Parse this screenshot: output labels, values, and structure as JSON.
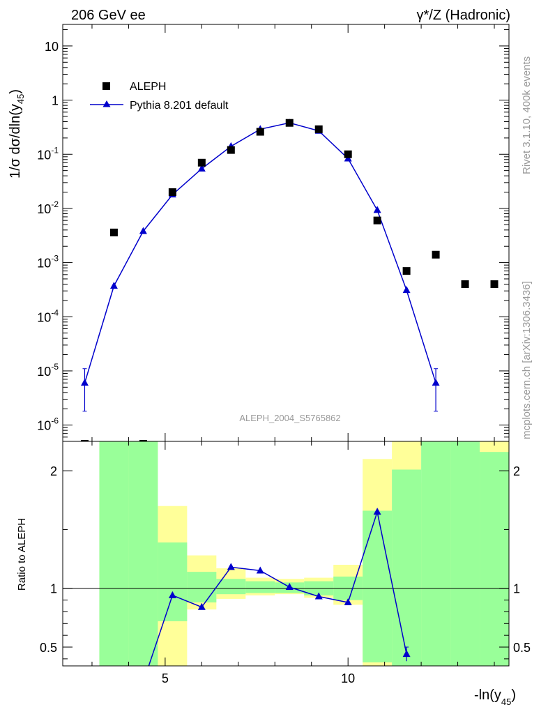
{
  "header": {
    "left": "206 GeV ee",
    "right": "γ*/Z (Hadronic)"
  },
  "side_text": {
    "rivet": "Rivet 3.1.10,  400k events",
    "mcplots": "mcplots.cern.ch [arXiv:1306.3436]"
  },
  "analysis_label": "ALEPH_2004_S5765862",
  "legend": {
    "data": "ALEPH",
    "mc": "Pythia 8.201 default"
  },
  "colors": {
    "mc": "#0000cc",
    "data": "#000000",
    "band_stat": "#99ff99",
    "band_total": "#ffff99"
  },
  "chart_data": [
    {
      "type": "scatter",
      "panel": "main",
      "ylabel": "1/σ dσ/dln(y45)",
      "ylabel_parts": {
        "main": "1/σ  dσ/dln(y",
        "sub": "45",
        "close": ")"
      },
      "yscale": "log",
      "ylim": [
        5e-07,
        25
      ],
      "xlim": [
        2.2,
        14.4
      ],
      "ytick_labels": [
        {
          "base": "10",
          "exp": "-6",
          "value": 1e-06
        },
        {
          "base": "10",
          "exp": "-5",
          "value": 1e-05
        },
        {
          "base": "10",
          "exp": "-4",
          "value": 0.0001
        },
        {
          "base": "10",
          "exp": "-3",
          "value": 0.001
        },
        {
          "base": "10",
          "exp": "-2",
          "value": 0.01
        },
        {
          "base": "10",
          "exp": "-1",
          "value": 0.1
        },
        {
          "base": "1",
          "exp": "",
          "value": 1
        },
        {
          "base": "10",
          "exp": "",
          "value": 10
        }
      ],
      "series": [
        {
          "name": "ALEPH",
          "marker": "square",
          "x": [
            2.8,
            3.6,
            4.4,
            5.2,
            6.0,
            6.8,
            7.6,
            8.4,
            9.2,
            10.0,
            10.8,
            11.6,
            12.4,
            13.2,
            14.0
          ],
          "y": [
            4.5e-07,
            0.0036,
            4.5e-07,
            0.02,
            0.07,
            0.12,
            0.26,
            0.38,
            0.29,
            0.1,
            0.006,
            0.0007,
            0.0014,
            0.0004,
            0.0004
          ]
        },
        {
          "name": "Pythia 8.201 default",
          "marker": "triangle",
          "x": [
            2.8,
            3.6,
            4.4,
            5.2,
            6.0,
            6.8,
            7.6,
            8.4,
            9.2,
            10.0,
            10.8,
            11.6,
            12.4
          ],
          "y": [
            6e-06,
            0.00037,
            0.0038,
            0.018,
            0.054,
            0.14,
            0.29,
            0.38,
            0.27,
            0.083,
            0.0093,
            0.00031,
            6e-06
          ],
          "err_low": [
            4.2e-06,
            0,
            0,
            0,
            0,
            0,
            0,
            0,
            0,
            0,
            0,
            0,
            4.2e-06
          ],
          "err_high": [
            5e-06,
            0,
            0,
            0,
            0,
            0,
            0,
            0,
            0,
            0,
            0,
            0,
            5e-06
          ]
        }
      ]
    },
    {
      "type": "line",
      "panel": "ratio",
      "ylabel": "Ratio to ALEPH",
      "xlabel_parts": {
        "main": "-ln(y",
        "sub": "45",
        "close": ")"
      },
      "xlim": [
        2.2,
        14.4
      ],
      "ylim": [
        0.34,
        2.25
      ],
      "xtick_labels": [
        "5",
        "10"
      ],
      "xticks": [
        5,
        10
      ],
      "ytick_labels": [
        "0.5",
        "1",
        "2"
      ],
      "yticks": [
        0.5,
        1,
        2
      ],
      "reference_line": 1,
      "bins": [
        {
          "lo": 3.2,
          "hi": 4.0,
          "stat": [
            0.0,
            2.35
          ],
          "total": [
            0.0,
            2.35
          ]
        },
        {
          "lo": 4.0,
          "hi": 4.8,
          "stat": [
            0.0,
            2.35
          ],
          "total": [
            0.0,
            2.35
          ]
        },
        {
          "lo": 4.8,
          "hi": 5.6,
          "stat": [
            0.72,
            1.39
          ],
          "total": [
            0.0,
            1.7
          ]
        },
        {
          "lo": 5.6,
          "hi": 6.4,
          "stat": [
            0.88,
            1.14
          ],
          "total": [
            0.82,
            1.28
          ]
        },
        {
          "lo": 6.4,
          "hi": 7.2,
          "stat": [
            0.95,
            1.08
          ],
          "total": [
            0.91,
            1.17
          ]
        },
        {
          "lo": 7.2,
          "hi": 8.0,
          "stat": [
            0.96,
            1.06
          ],
          "total": [
            0.94,
            1.09
          ]
        },
        {
          "lo": 8.0,
          "hi": 8.8,
          "stat": [
            0.96,
            1.05
          ],
          "total": [
            0.95,
            1.08
          ]
        },
        {
          "lo": 8.8,
          "hi": 9.6,
          "stat": [
            0.94,
            1.06
          ],
          "total": [
            0.92,
            1.09
          ]
        },
        {
          "lo": 9.6,
          "hi": 10.4,
          "stat": [
            0.9,
            1.1
          ],
          "total": [
            0.86,
            1.2
          ]
        },
        {
          "lo": 10.4,
          "hi": 11.2,
          "stat": [
            0.37,
            1.66
          ],
          "total": [
            0.34,
            2.1
          ]
        },
        {
          "lo": 11.2,
          "hi": 12.0,
          "stat": [
            0.0,
            2.01
          ],
          "total": [
            0.0,
            2.35
          ]
        },
        {
          "lo": 12.0,
          "hi": 12.8,
          "stat": [
            0.0,
            2.35
          ],
          "total": [
            0.0,
            1.9
          ]
        },
        {
          "lo": 12.8,
          "hi": 13.6,
          "stat": [
            0.0,
            2.35
          ],
          "total": [
            0.0,
            2.35
          ]
        },
        {
          "lo": 13.6,
          "hi": 14.4,
          "stat": [
            0.0,
            2.16
          ],
          "total": [
            0.0,
            2.35
          ]
        }
      ],
      "series": [
        {
          "name": "Pythia 8.201 default",
          "x": [
            4.4,
            5.2,
            6.0,
            6.8,
            7.6,
            8.4,
            9.2,
            10.0,
            10.8,
            11.6
          ],
          "y": [
            0.2,
            0.94,
            0.84,
            1.18,
            1.15,
            1.01,
            0.93,
            0.88,
            1.65,
            0.44
          ],
          "err": [
            0,
            0,
            0,
            0,
            0,
            0,
            0,
            0,
            0,
            0.06
          ],
          "markers_visible": [
            false,
            true,
            true,
            true,
            true,
            true,
            true,
            true,
            true,
            true
          ]
        }
      ]
    }
  ]
}
